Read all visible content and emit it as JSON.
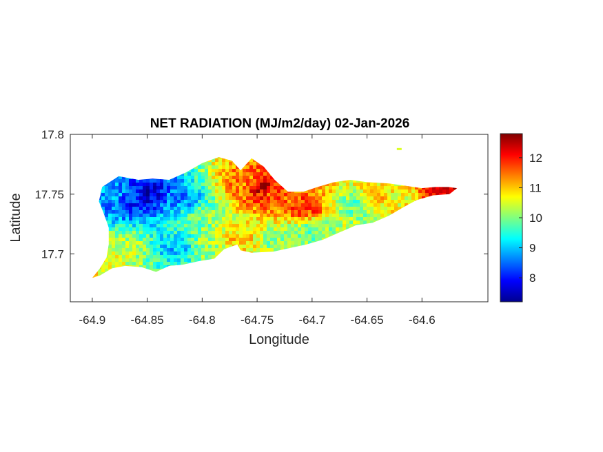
{
  "chart_data": {
    "type": "heatmap",
    "title": "NET RADIATION (MJ/m2/day) 02-Jan-2026",
    "xlabel": "Longitude",
    "ylabel": "Latitude",
    "xlim": [
      -64.92,
      -64.54
    ],
    "ylim": [
      17.66,
      17.8
    ],
    "x_ticks": [
      -64.9,
      -64.85,
      -64.8,
      -64.75,
      -64.7,
      -64.65,
      -64.6
    ],
    "x_tick_labels": [
      "-64.9",
      "-64.85",
      "-64.8",
      "-64.75",
      "-64.7",
      "-64.65",
      "-64.6"
    ],
    "y_ticks": [
      17.7,
      17.75,
      17.8
    ],
    "y_tick_labels": [
      "17.7",
      "17.75",
      "17.8"
    ],
    "colorbar": {
      "range": [
        7.2,
        12.8
      ],
      "ticks": [
        8,
        9,
        10,
        11,
        12
      ],
      "tick_labels": [
        "8",
        "9",
        "10",
        "11",
        "12"
      ],
      "colormap": "jet"
    },
    "grid": false,
    "island_outline": [
      [
        -64.9,
        17.68
      ],
      [
        -64.893,
        17.688
      ],
      [
        -64.887,
        17.697
      ],
      [
        -64.885,
        17.708
      ],
      [
        -64.885,
        17.722
      ],
      [
        -64.89,
        17.735
      ],
      [
        -64.894,
        17.744
      ],
      [
        -64.891,
        17.756
      ],
      [
        -64.876,
        17.765
      ],
      [
        -64.858,
        17.762
      ],
      [
        -64.845,
        17.763
      ],
      [
        -64.83,
        17.762
      ],
      [
        -64.815,
        17.768
      ],
      [
        -64.8,
        17.776
      ],
      [
        -64.785,
        17.781
      ],
      [
        -64.773,
        17.778
      ],
      [
        -64.765,
        17.77
      ],
      [
        -64.755,
        17.78
      ],
      [
        -64.744,
        17.773
      ],
      [
        -64.734,
        17.762
      ],
      [
        -64.722,
        17.752
      ],
      [
        -64.708,
        17.752
      ],
      [
        -64.695,
        17.756
      ],
      [
        -64.68,
        17.76
      ],
      [
        -64.665,
        17.762
      ],
      [
        -64.65,
        17.76
      ],
      [
        -64.63,
        17.759
      ],
      [
        -64.615,
        17.757
      ],
      [
        -64.6,
        17.755
      ],
      [
        -64.588,
        17.756
      ],
      [
        -64.576,
        17.756
      ],
      [
        -64.568,
        17.755
      ],
      [
        -64.575,
        17.75
      ],
      [
        -64.59,
        17.749
      ],
      [
        -64.605,
        17.745
      ],
      [
        -64.617,
        17.739
      ],
      [
        -64.63,
        17.732
      ],
      [
        -64.645,
        17.726
      ],
      [
        -64.66,
        17.724
      ],
      [
        -64.675,
        17.718
      ],
      [
        -64.69,
        17.712
      ],
      [
        -64.705,
        17.708
      ],
      [
        -64.72,
        17.705
      ],
      [
        -64.735,
        17.702
      ],
      [
        -64.755,
        17.701
      ],
      [
        -64.765,
        17.703
      ],
      [
        -64.768,
        17.708
      ],
      [
        -64.78,
        17.704
      ],
      [
        -64.789,
        17.696
      ],
      [
        -64.803,
        17.694
      ],
      [
        -64.818,
        17.691
      ],
      [
        -64.83,
        17.69
      ],
      [
        -64.842,
        17.685
      ],
      [
        -64.855,
        17.689
      ],
      [
        -64.87,
        17.69
      ],
      [
        -64.882,
        17.688
      ],
      [
        -64.893,
        17.682
      ],
      [
        -64.9,
        17.68
      ]
    ],
    "islet": [
      -64.621,
      17.788
    ],
    "value_hotspots": [
      {
        "lon": -64.85,
        "lat": 17.75,
        "value": 7.7
      },
      {
        "lon": -64.862,
        "lat": 17.745,
        "value": 8.1
      },
      {
        "lon": -64.818,
        "lat": 17.746,
        "value": 8.7
      },
      {
        "lon": -64.825,
        "lat": 17.705,
        "value": 9.0
      },
      {
        "lon": -64.882,
        "lat": 17.752,
        "value": 8.8
      },
      {
        "lon": -64.87,
        "lat": 17.705,
        "value": 10.3
      },
      {
        "lon": -64.89,
        "lat": 17.69,
        "value": 10.8
      },
      {
        "lon": -64.8,
        "lat": 17.73,
        "value": 10.0
      },
      {
        "lon": -64.76,
        "lat": 17.76,
        "value": 11.4
      },
      {
        "lon": -64.745,
        "lat": 17.755,
        "value": 12.3
      },
      {
        "lon": -64.735,
        "lat": 17.748,
        "value": 11.6
      },
      {
        "lon": -64.706,
        "lat": 17.738,
        "value": 11.8
      },
      {
        "lon": -64.73,
        "lat": 17.712,
        "value": 10.0
      },
      {
        "lon": -64.7,
        "lat": 17.72,
        "value": 9.9
      },
      {
        "lon": -64.66,
        "lat": 17.74,
        "value": 9.8
      },
      {
        "lon": -64.64,
        "lat": 17.746,
        "value": 10.9
      },
      {
        "lon": -64.62,
        "lat": 17.748,
        "value": 10.6
      },
      {
        "lon": -64.585,
        "lat": 17.752,
        "value": 12.1
      },
      {
        "lon": -64.57,
        "lat": 17.754,
        "value": 12.3
      },
      {
        "lon": -64.768,
        "lat": 17.712,
        "value": 11.0
      },
      {
        "lon": -64.79,
        "lat": 17.705,
        "value": 10.2
      }
    ],
    "background_value": 10.0
  }
}
